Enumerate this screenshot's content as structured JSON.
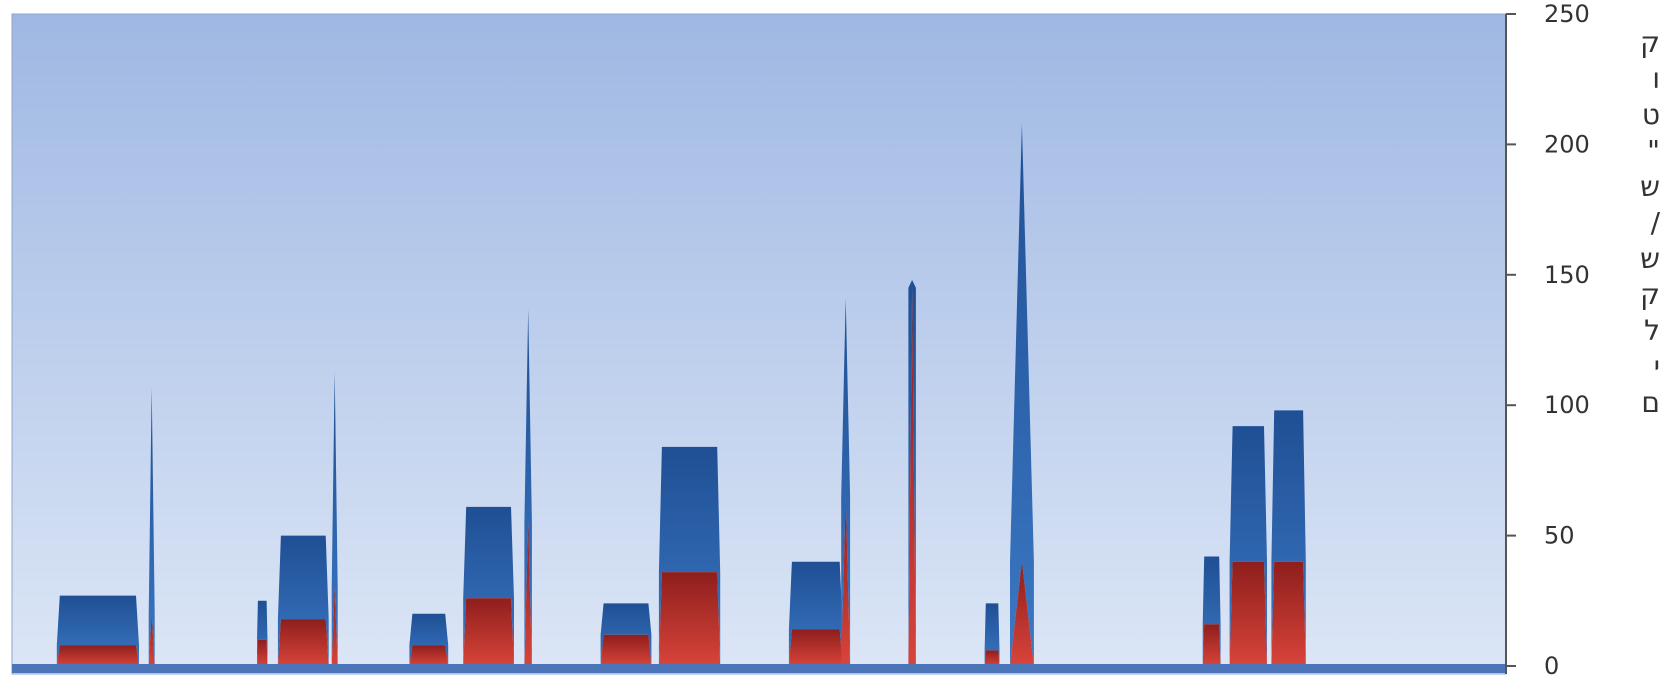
{
  "chart_data": {
    "type": "area",
    "stacked": true,
    "ylim": [
      0,
      250
    ],
    "y_ticks": [
      "0",
      "50",
      "100",
      "150",
      "200",
      "250"
    ],
    "y_axis_side": "right",
    "grid": false,
    "background": "gradient sky blue",
    "side_text_fragments": [
      "ק",
      "ו",
      "ט",
      "\"",
      "ש",
      "/",
      "ש",
      "ק",
      "ל",
      "י",
      "ם"
    ],
    "series": [
      {
        "color": "#C0322E",
        "segments": [
          {
            "start": 0.03,
            "end": 0.085,
            "shape": "plateau",
            "value": 8
          },
          {
            "start": 0.0915,
            "end": 0.0955,
            "shape": "spike",
            "value": 20
          },
          {
            "start": 0.164,
            "end": 0.171,
            "shape": "plateau",
            "value": 10
          },
          {
            "start": 0.178,
            "end": 0.212,
            "shape": "plateau",
            "value": 18
          },
          {
            "start": 0.214,
            "end": 0.218,
            "shape": "spike",
            "value": 30
          },
          {
            "start": 0.266,
            "end": 0.292,
            "shape": "plateau",
            "value": 8
          },
          {
            "start": 0.302,
            "end": 0.336,
            "shape": "plateau",
            "value": 26
          },
          {
            "start": 0.343,
            "end": 0.348,
            "shape": "spike",
            "value": 55
          },
          {
            "start": 0.394,
            "end": 0.428,
            "shape": "plateau",
            "value": 12
          },
          {
            "start": 0.433,
            "end": 0.474,
            "shape": "plateau",
            "value": 36
          },
          {
            "start": 0.52,
            "end": 0.556,
            "shape": "plateau",
            "value": 14
          },
          {
            "start": 0.555,
            "end": 0.561,
            "shape": "spike",
            "value": 65
          },
          {
            "start": 0.6,
            "end": 0.605,
            "shape": "spike",
            "value": 145
          },
          {
            "start": 0.651,
            "end": 0.661,
            "shape": "plateau",
            "value": 6
          },
          {
            "start": 0.668,
            "end": 0.684,
            "shape": "spike",
            "value": 40
          },
          {
            "start": 0.797,
            "end": 0.809,
            "shape": "plateau",
            "value": 16
          },
          {
            "start": 0.815,
            "end": 0.84,
            "shape": "plateau",
            "value": 40
          },
          {
            "start": 0.843,
            "end": 0.866,
            "shape": "plateau",
            "value": 40
          }
        ]
      },
      {
        "color": "#2E66B2",
        "segments": [
          {
            "start": 0.03,
            "end": 0.085,
            "shape": "plateau",
            "value": 19
          },
          {
            "start": 0.0915,
            "end": 0.0955,
            "shape": "spike",
            "value": 87
          },
          {
            "start": 0.164,
            "end": 0.171,
            "shape": "plateau",
            "value": 15
          },
          {
            "start": 0.178,
            "end": 0.212,
            "shape": "plateau",
            "value": 32
          },
          {
            "start": 0.214,
            "end": 0.218,
            "shape": "spike",
            "value": 83
          },
          {
            "start": 0.266,
            "end": 0.292,
            "shape": "plateau",
            "value": 12
          },
          {
            "start": 0.302,
            "end": 0.336,
            "shape": "plateau",
            "value": 35
          },
          {
            "start": 0.343,
            "end": 0.348,
            "shape": "spike",
            "value": 82
          },
          {
            "start": 0.394,
            "end": 0.428,
            "shape": "plateau",
            "value": 12
          },
          {
            "start": 0.433,
            "end": 0.474,
            "shape": "plateau",
            "value": 48
          },
          {
            "start": 0.52,
            "end": 0.556,
            "shape": "plateau",
            "value": 26
          },
          {
            "start": 0.555,
            "end": 0.561,
            "shape": "spike",
            "value": 76
          },
          {
            "start": 0.6,
            "end": 0.605,
            "shape": "spike",
            "value": 3
          },
          {
            "start": 0.651,
            "end": 0.661,
            "shape": "plateau",
            "value": 18
          },
          {
            "start": 0.668,
            "end": 0.684,
            "shape": "spike",
            "value": 168
          },
          {
            "start": 0.797,
            "end": 0.809,
            "shape": "plateau",
            "value": 26
          },
          {
            "start": 0.815,
            "end": 0.84,
            "shape": "plateau",
            "value": 52
          },
          {
            "start": 0.843,
            "end": 0.866,
            "shape": "plateau",
            "value": 58
          }
        ]
      }
    ]
  }
}
